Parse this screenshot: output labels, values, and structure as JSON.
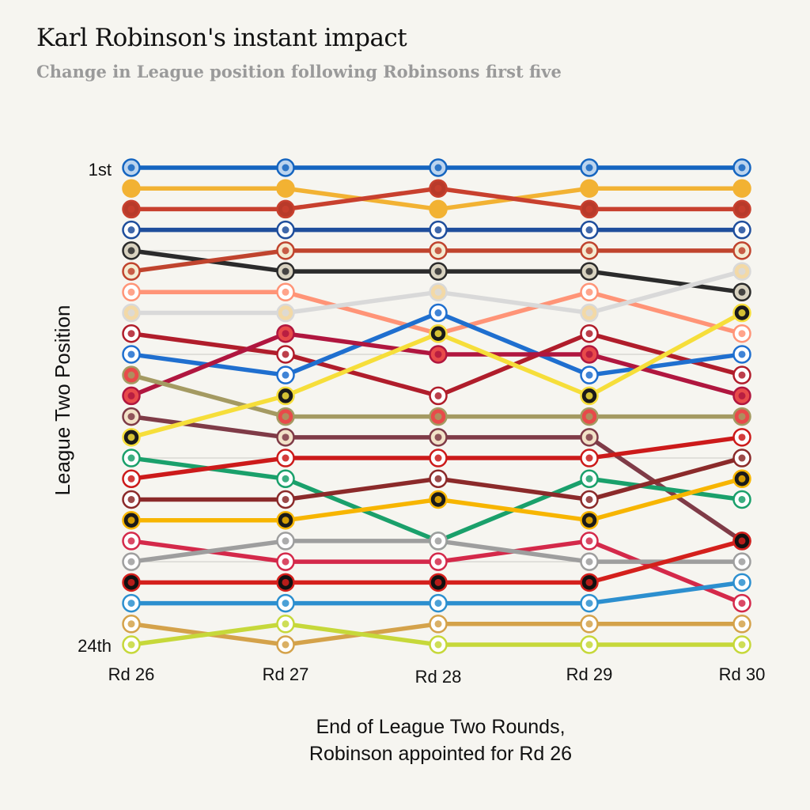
{
  "title": "Karl Robinson's instant impact",
  "subtitle": "Change in League position following Robinsons first five",
  "chart_data": {
    "type": "line",
    "title": "Karl Robinson's instant impact",
    "subtitle": "Change in League position following Robinsons first five",
    "xlabel_line1": "End of League Two Rounds,",
    "xlabel_line2": "Robinson appointed for Rd 26",
    "ylabel": "League Two Position",
    "categories": [
      "Rd 26",
      "Rd 27",
      "Rd 28",
      "Rd 29",
      "Rd 30"
    ],
    "y_tick_labels": {
      "top": "1st",
      "bottom": "24th"
    },
    "ylim": [
      1,
      24
    ],
    "y_inverted": true,
    "reference_lines_at": [
      5,
      10,
      15,
      20
    ],
    "series": [
      {
        "color": "#1565c0",
        "badge_fill": "#bcd4ee",
        "values": [
          1,
          1,
          1,
          1,
          1
        ]
      },
      {
        "color": "#f2b233",
        "badge_fill": "#f2b233",
        "values": [
          2,
          2,
          3,
          2,
          2
        ]
      },
      {
        "color": "#c8402e",
        "badge_fill": "#b83a2a",
        "values": [
          3,
          3,
          2,
          3,
          3
        ]
      },
      {
        "color": "#1f4e9c",
        "badge_fill": "#ffffff",
        "values": [
          4,
          4,
          4,
          4,
          4
        ]
      },
      {
        "color": "#2b2b2b",
        "badge_fill": "#d8d2c0",
        "values": [
          5,
          6,
          6,
          6,
          7
        ]
      },
      {
        "color": "#c0442e",
        "badge_fill": "#f4ecd2",
        "values": [
          6,
          5,
          5,
          5,
          5
        ]
      },
      {
        "color": "#ff9477",
        "badge_fill": "#ffffff",
        "values": [
          7,
          7,
          9,
          7,
          9
        ]
      },
      {
        "color": "#d9d9d9",
        "badge_fill": "#f3d9a6",
        "values": [
          8,
          8,
          7,
          8,
          6
        ]
      },
      {
        "color": "#b01d2b",
        "badge_fill": "#ffffff",
        "values": [
          9,
          10,
          12,
          9,
          11
        ]
      },
      {
        "color": "#1f6fcf",
        "badge_fill": "#ffffff",
        "values": [
          10,
          11,
          8,
          11,
          10
        ]
      },
      {
        "color": "#b0163f",
        "badge_fill": "#e84a4a",
        "values": [
          12,
          9,
          10,
          10,
          12
        ]
      },
      {
        "color": "#a49a62",
        "badge_fill": "#e84a4a",
        "values": [
          11,
          13,
          13,
          13,
          13
        ]
      },
      {
        "color": "#7f3b47",
        "badge_fill": "#f2e2c8",
        "values": [
          13,
          14,
          14,
          14,
          19
        ]
      },
      {
        "color": "#f6de3a",
        "badge_fill": "#1a1a1a",
        "values": [
          14,
          12,
          9,
          12,
          8
        ]
      },
      {
        "color": "#1aa06b",
        "badge_fill": "#ffffff",
        "values": [
          15,
          16,
          19,
          16,
          17
        ]
      },
      {
        "color": "#cc1a1a",
        "badge_fill": "#ffffff",
        "values": [
          16,
          15,
          15,
          15,
          14
        ]
      },
      {
        "color": "#8b2a2a",
        "badge_fill": "#ffffff",
        "values": [
          17,
          17,
          16,
          17,
          15
        ]
      },
      {
        "color": "#f7b500",
        "badge_fill": "#1a1a1a",
        "values": [
          18,
          18,
          17,
          18,
          16
        ]
      },
      {
        "color": "#d4294a",
        "badge_fill": "#ffffff",
        "values": [
          19,
          20,
          20,
          19,
          22
        ]
      },
      {
        "color": "#9e9e9e",
        "badge_fill": "#ffffff",
        "values": [
          20,
          19,
          19,
          20,
          20
        ]
      },
      {
        "color": "#d4201c",
        "badge_fill": "#111111",
        "values": [
          21,
          21,
          21,
          21,
          19
        ]
      },
      {
        "color": "#2c8fcf",
        "badge_fill": "#ffffff",
        "values": [
          22,
          22,
          22,
          22,
          21
        ]
      },
      {
        "color": "#d4a24a",
        "badge_fill": "#ffffff",
        "values": [
          23,
          24,
          23,
          23,
          23
        ]
      },
      {
        "color": "#c6d83a",
        "badge_fill": "#ffffff",
        "values": [
          24,
          23,
          24,
          24,
          24
        ]
      }
    ]
  }
}
